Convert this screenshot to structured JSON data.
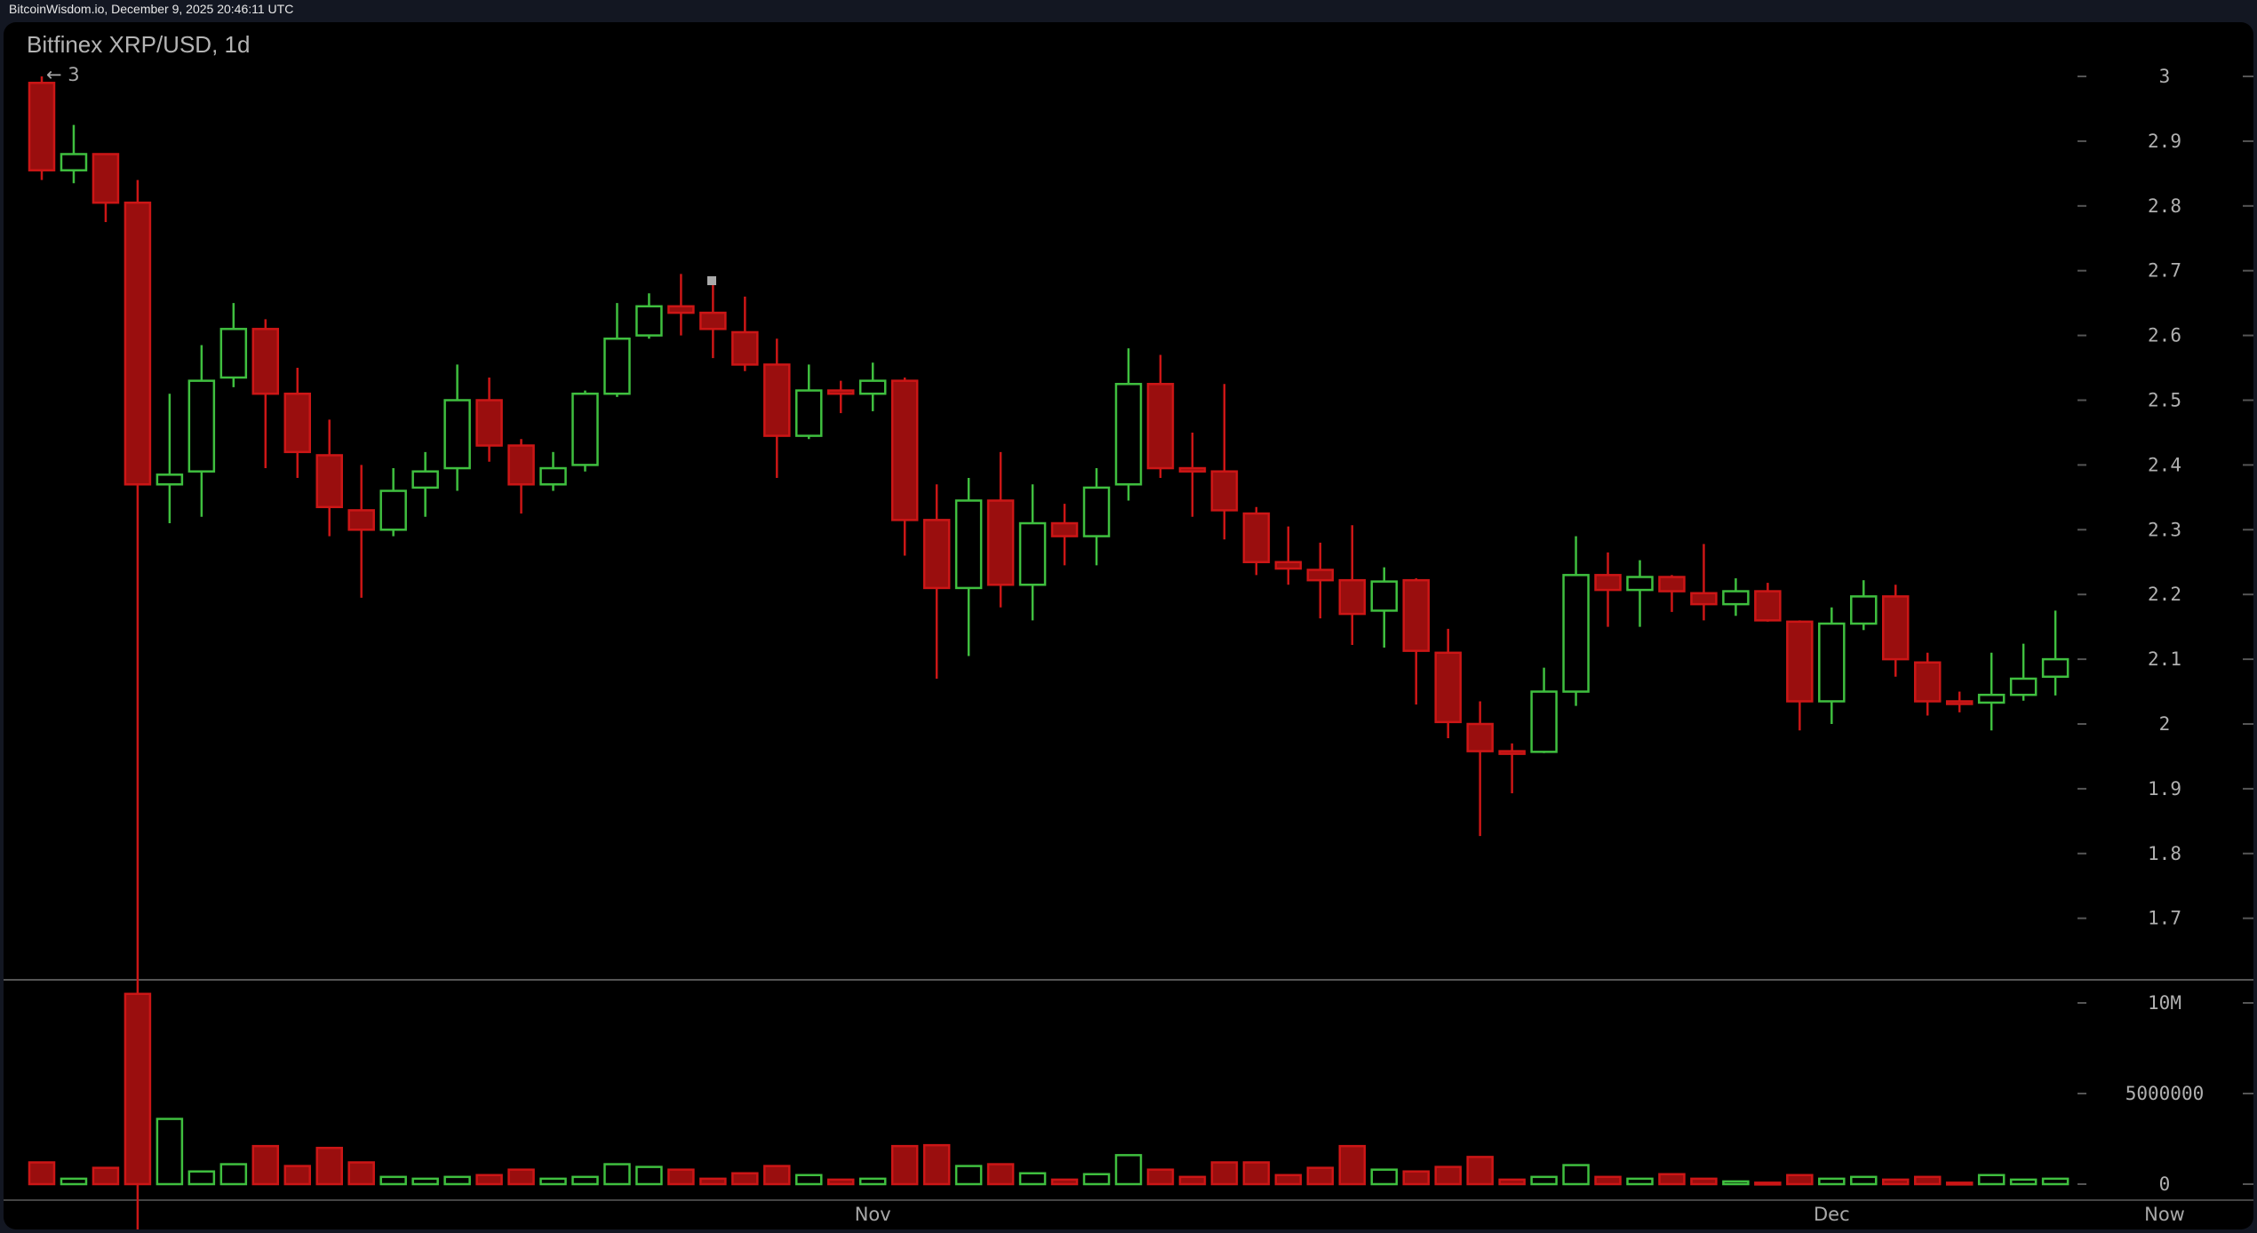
{
  "header": {
    "source_line": "BitcoinWisdom.io, December 9, 2025 20:46:11 UTC"
  },
  "chart_data": {
    "type": "candlestick",
    "title": "Bitfinex XRP/USD, 1d",
    "max_marker": "← 3",
    "colors": {
      "up": "#3fbf3f",
      "down": "#cc1616",
      "down_fill": "#9a0e0e",
      "axis_text": "#b0b0b0",
      "background": "#000000"
    },
    "price_axis": {
      "ylim": [
        1.6,
        3.05
      ],
      "ticks": [
        "1.7",
        "1.8",
        "1.9",
        "2",
        "2.1",
        "2.2",
        "2.3",
        "2.4",
        "2.5",
        "2.6",
        "2.7",
        "2.8",
        "2.9",
        "3"
      ]
    },
    "volume_axis": {
      "ylim": [
        0,
        11000000
      ],
      "ticks": [
        {
          "v": 0,
          "label": "0"
        },
        {
          "v": 5000000,
          "label": "5000000"
        },
        {
          "v": 10000000,
          "label": "10M"
        }
      ]
    },
    "x_labels": [
      {
        "index": 26,
        "label": "Nov"
      },
      {
        "index": 56,
        "label": "Dec"
      }
    ],
    "now_label": "Now",
    "candles": [
      [
        2.99,
        3.0,
        2.84,
        2.855,
        1.2
      ],
      [
        2.855,
        2.925,
        2.835,
        2.88,
        0.3
      ],
      [
        2.88,
        2.88,
        2.775,
        2.805,
        0.9
      ],
      [
        2.805,
        2.84,
        1.2,
        2.37,
        10.5
      ],
      [
        2.37,
        2.51,
        2.31,
        2.385,
        3.6
      ],
      [
        2.39,
        2.585,
        2.32,
        2.53,
        0.7
      ],
      [
        2.535,
        2.65,
        2.52,
        2.61,
        1.1
      ],
      [
        2.61,
        2.625,
        2.395,
        2.51,
        2.1
      ],
      [
        2.51,
        2.55,
        2.38,
        2.42,
        1.0
      ],
      [
        2.415,
        2.47,
        2.29,
        2.335,
        2.0
      ],
      [
        2.33,
        2.4,
        2.195,
        2.3,
        1.2
      ],
      [
        2.3,
        2.395,
        2.29,
        2.36,
        0.4
      ],
      [
        2.365,
        2.42,
        2.32,
        2.39,
        0.3
      ],
      [
        2.395,
        2.555,
        2.36,
        2.5,
        0.4
      ],
      [
        2.5,
        2.535,
        2.405,
        2.43,
        0.5
      ],
      [
        2.43,
        2.44,
        2.325,
        2.37,
        0.8
      ],
      [
        2.37,
        2.42,
        2.36,
        2.395,
        0.3
      ],
      [
        2.4,
        2.515,
        2.39,
        2.51,
        0.4
      ],
      [
        2.51,
        2.65,
        2.505,
        2.595,
        1.1
      ],
      [
        2.6,
        2.665,
        2.595,
        2.645,
        0.95
      ],
      [
        2.645,
        2.695,
        2.6,
        2.635,
        0.8
      ],
      [
        2.635,
        2.68,
        2.565,
        2.61,
        0.3
      ],
      [
        2.605,
        2.66,
        2.545,
        2.555,
        0.6
      ],
      [
        2.555,
        2.595,
        2.38,
        2.445,
        1.0
      ],
      [
        2.445,
        2.555,
        2.44,
        2.515,
        0.5
      ],
      [
        2.515,
        2.53,
        2.48,
        2.51,
        0.25
      ],
      [
        2.51,
        2.558,
        2.483,
        2.53,
        0.3
      ],
      [
        2.53,
        2.535,
        2.26,
        2.315,
        2.1
      ],
      [
        2.315,
        2.37,
        2.07,
        2.21,
        2.15
      ],
      [
        2.21,
        2.38,
        2.105,
        2.345,
        1.0
      ],
      [
        2.345,
        2.42,
        2.18,
        2.215,
        1.1
      ],
      [
        2.215,
        2.37,
        2.16,
        2.31,
        0.6
      ],
      [
        2.31,
        2.34,
        2.245,
        2.29,
        0.25
      ],
      [
        2.29,
        2.395,
        2.245,
        2.365,
        0.55
      ],
      [
        2.37,
        2.58,
        2.345,
        2.525,
        1.6
      ],
      [
        2.525,
        2.57,
        2.38,
        2.395,
        0.8
      ],
      [
        2.395,
        2.45,
        2.32,
        2.39,
        0.4
      ],
      [
        2.39,
        2.525,
        2.285,
        2.33,
        1.2
      ],
      [
        2.325,
        2.335,
        2.23,
        2.25,
        1.2
      ],
      [
        2.25,
        2.305,
        2.215,
        2.24,
        0.5
      ],
      [
        2.238,
        2.28,
        2.163,
        2.222,
        0.9
      ],
      [
        2.222,
        2.307,
        2.122,
        2.17,
        2.1
      ],
      [
        2.175,
        2.242,
        2.118,
        2.22,
        0.8
      ],
      [
        2.222,
        2.225,
        2.03,
        2.113,
        0.7
      ],
      [
        2.11,
        2.147,
        1.978,
        2.003,
        0.95
      ],
      [
        2.0,
        2.035,
        1.827,
        1.958,
        1.5
      ],
      [
        1.958,
        1.97,
        1.893,
        1.955,
        0.25
      ],
      [
        1.957,
        2.087,
        1.955,
        2.05,
        0.4
      ],
      [
        2.05,
        2.29,
        2.028,
        2.23,
        1.05
      ],
      [
        2.23,
        2.265,
        2.15,
        2.207,
        0.4
      ],
      [
        2.207,
        2.253,
        2.15,
        2.227,
        0.3
      ],
      [
        2.227,
        2.23,
        2.173,
        2.205,
        0.55
      ],
      [
        2.202,
        2.278,
        2.16,
        2.185,
        0.3
      ],
      [
        2.185,
        2.225,
        2.167,
        2.205,
        0.15
      ],
      [
        2.205,
        2.218,
        2.158,
        2.16,
        0.08
      ],
      [
        2.158,
        2.16,
        1.99,
        2.035,
        0.5
      ],
      [
        2.035,
        2.18,
        2.0,
        2.155,
        0.3
      ],
      [
        2.155,
        2.222,
        2.145,
        2.197,
        0.4
      ],
      [
        2.197,
        2.215,
        2.073,
        2.1,
        0.25
      ],
      [
        2.095,
        2.11,
        2.013,
        2.035,
        0.4
      ],
      [
        2.035,
        2.05,
        2.018,
        2.033,
        0.08
      ],
      [
        2.033,
        2.11,
        1.99,
        2.045,
        0.5
      ],
      [
        2.045,
        2.124,
        2.036,
        2.07,
        0.25
      ],
      [
        2.073,
        2.175,
        2.044,
        2.1,
        0.3
      ]
    ],
    "candle_fields": [
      "open",
      "high",
      "low",
      "close",
      "volume_millions"
    ]
  }
}
